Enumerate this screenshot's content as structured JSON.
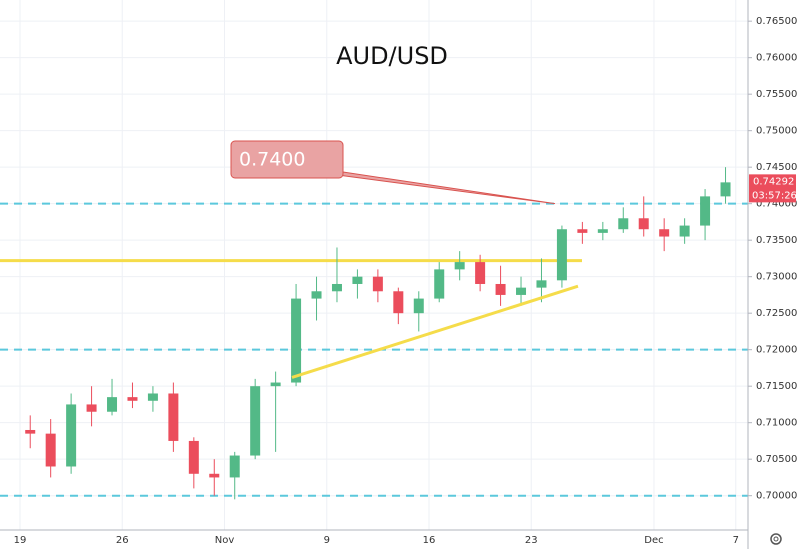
{
  "chart_data": {
    "type": "candlestick",
    "title": "AUD/USD",
    "categories": [
      "19",
      null,
      null,
      null,
      null,
      "26",
      null,
      null,
      null,
      null,
      "Nov",
      null,
      null,
      null,
      null,
      "9",
      null,
      null,
      null,
      null,
      "16",
      null,
      null,
      null,
      null,
      "23",
      null,
      null,
      null,
      null,
      null,
      "Dec",
      null,
      null,
      null,
      "7"
    ],
    "open": [
      0.709,
      0.7085,
      0.704,
      0.7125,
      0.7115,
      0.7135,
      0.713,
      0.714,
      0.7075,
      0.703,
      0.7025,
      0.7055,
      0.715,
      0.7155,
      0.727,
      0.728,
      0.729,
      0.73,
      0.728,
      0.725,
      0.727,
      0.731,
      0.732,
      0.729,
      0.7275,
      0.7285,
      0.7295,
      0.7365,
      0.736,
      0.7365,
      0.738,
      0.7365,
      0.7355,
      0.737,
      0.741,
      null
    ],
    "high": [
      0.711,
      0.7105,
      0.714,
      0.715,
      0.716,
      0.7155,
      0.715,
      0.7155,
      0.708,
      0.705,
      0.706,
      0.716,
      0.717,
      0.729,
      0.73,
      0.734,
      0.731,
      0.731,
      0.7285,
      0.728,
      0.732,
      0.7335,
      0.733,
      0.7315,
      0.73,
      0.7325,
      0.737,
      0.7375,
      0.7375,
      0.7395,
      0.741,
      0.738,
      0.738,
      0.742,
      0.745,
      null
    ],
    "low": [
      0.7065,
      0.7025,
      0.703,
      0.7095,
      0.711,
      0.712,
      0.7115,
      0.706,
      0.701,
      0.7,
      0.6995,
      0.705,
      0.706,
      0.715,
      0.724,
      0.7265,
      0.727,
      0.7265,
      0.7235,
      0.7225,
      0.7265,
      0.7295,
      0.728,
      0.726,
      0.726,
      0.7265,
      0.7285,
      0.7345,
      0.735,
      0.736,
      0.7355,
      0.7335,
      0.7345,
      0.735,
      0.74,
      null
    ],
    "close": [
      0.7085,
      0.704,
      0.7125,
      0.7115,
      0.7135,
      0.713,
      0.714,
      0.7075,
      0.703,
      0.7025,
      0.7055,
      0.715,
      0.7155,
      0.727,
      0.728,
      0.729,
      0.73,
      0.728,
      0.725,
      0.727,
      0.731,
      0.732,
      0.729,
      0.7275,
      0.7285,
      0.7295,
      0.7365,
      0.736,
      0.7365,
      0.738,
      0.7365,
      0.7355,
      0.737,
      0.741,
      0.74292,
      null
    ],
    "up_color": "#53b987",
    "down_color": "#eb4d5c",
    "ylim": [
      0.6953,
      0.7679
    ],
    "yticks": [
      {
        "value": 0.7,
        "label": "0.70000"
      },
      {
        "value": 0.705,
        "label": "0.70500"
      },
      {
        "value": 0.71,
        "label": "0.71000"
      },
      {
        "value": 0.715,
        "label": "0.71500"
      },
      {
        "value": 0.72,
        "label": "0.72000"
      },
      {
        "value": 0.725,
        "label": "0.72500"
      },
      {
        "value": 0.73,
        "label": "0.73000"
      },
      {
        "value": 0.735,
        "label": "0.73500"
      },
      {
        "value": 0.74,
        "label": "0.74000"
      },
      {
        "value": 0.745,
        "label": "0.74500"
      },
      {
        "value": 0.75,
        "label": "0.75000"
      },
      {
        "value": 0.755,
        "label": "0.75500"
      },
      {
        "value": 0.76,
        "label": "0.76000"
      },
      {
        "value": 0.765,
        "label": "0.76500"
      }
    ],
    "grid": true,
    "level_lines": {
      "color": "#5bc8dc",
      "values": [
        0.74,
        0.72,
        0.7
      ]
    },
    "resistance_line": {
      "color": "#f5dc4a",
      "value": 0.7322
    },
    "support_line": {
      "color": "#f5dc4a",
      "values": [
        0.7162,
        0.7287
      ]
    },
    "callout": {
      "text": "0.7400",
      "color": "#d9534f"
    },
    "countdown": "03:57:26"
  }
}
